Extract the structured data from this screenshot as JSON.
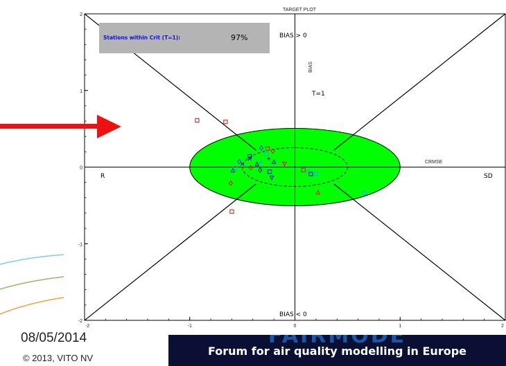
{
  "chart_data": {
    "type": "scatter",
    "title": "TARGET PLOT",
    "xlim": [
      -2,
      2
    ],
    "ylim": [
      -2,
      2
    ],
    "x_ticks": [
      "-2",
      "-1",
      "0",
      "1",
      "2"
    ],
    "y_ticks": [
      "-2",
      "-1",
      "0",
      "1",
      "2"
    ],
    "axis_labels": {
      "top": "BIAS > 0",
      "bottom": "BIAS < 0",
      "left": "R",
      "right": "SD",
      "vertical": "BIAS",
      "horizontal": "CRMSE"
    },
    "target_label": "T=1",
    "target_radius": 1,
    "inner_radius": 0.5,
    "stats_box": {
      "label": "Stations within Crit (T=1):",
      "value": "97%"
    },
    "points": [
      {
        "x": -0.93,
        "y": 0.61,
        "color": "#dd2222",
        "marker": "square"
      },
      {
        "x": -0.66,
        "y": 0.59,
        "color": "#dd2222",
        "marker": "square"
      },
      {
        "x": -0.32,
        "y": 0.25,
        "color": "#3344ff",
        "marker": "diamond"
      },
      {
        "x": -0.26,
        "y": 0.24,
        "color": "#dd2222",
        "marker": "square"
      },
      {
        "x": -0.21,
        "y": 0.21,
        "color": "#dd2222",
        "marker": "diamond"
      },
      {
        "x": -0.27,
        "y": 0.17,
        "color": "#00bbdd",
        "marker": "square"
      },
      {
        "x": -0.43,
        "y": 0.14,
        "color": "#2222cc",
        "marker": "square"
      },
      {
        "x": -0.43,
        "y": 0.11,
        "color": "#2222cc",
        "marker": "x"
      },
      {
        "x": -0.5,
        "y": 0.04,
        "color": "#2222cc",
        "marker": "x"
      },
      {
        "x": -0.53,
        "y": 0.07,
        "color": "#3344ff",
        "marker": "diamond"
      },
      {
        "x": -0.32,
        "y": 0.06,
        "color": "#00bbdd",
        "marker": "plus"
      },
      {
        "x": -0.25,
        "y": 0.11,
        "color": "#2222cc",
        "marker": "plus"
      },
      {
        "x": -0.36,
        "y": 0.04,
        "color": "#2222cc",
        "marker": "triangle"
      },
      {
        "x": -0.2,
        "y": 0.07,
        "color": "#2222cc",
        "marker": "triangle"
      },
      {
        "x": -0.1,
        "y": 0.04,
        "color": "#dd2222",
        "marker": "triangle-down"
      },
      {
        "x": -0.42,
        "y": -0.01,
        "color": "#dd2222",
        "marker": "diamond"
      },
      {
        "x": -0.57,
        "y": -0.01,
        "color": "#00bbdd",
        "marker": "square"
      },
      {
        "x": -0.59,
        "y": -0.04,
        "color": "#2222cc",
        "marker": "triangle"
      },
      {
        "x": -0.33,
        "y": -0.04,
        "color": "#2222cc",
        "marker": "diamond"
      },
      {
        "x": -0.24,
        "y": -0.06,
        "color": "#2222cc",
        "marker": "square"
      },
      {
        "x": -0.22,
        "y": -0.14,
        "color": "#2222cc",
        "marker": "triangle-down"
      },
      {
        "x": -0.61,
        "y": -0.21,
        "color": "#dd2222",
        "marker": "diamond"
      },
      {
        "x": -0.6,
        "y": -0.58,
        "color": "#dd2222",
        "marker": "square"
      },
      {
        "x": 0.08,
        "y": -0.04,
        "color": "#dd2222",
        "marker": "square"
      },
      {
        "x": 0.12,
        "y": -0.06,
        "color": "#00bbdd",
        "marker": "square"
      },
      {
        "x": 0.15,
        "y": -0.09,
        "color": "#2222cc",
        "marker": "square"
      },
      {
        "x": 0.2,
        "y": -0.09,
        "color": "#00bbdd",
        "marker": "square"
      },
      {
        "x": 0.22,
        "y": -0.33,
        "color": "#dd2222",
        "marker": "triangle"
      },
      {
        "x": 0.66,
        "y": -0.34,
        "color": "#00bbdd",
        "marker": "square"
      }
    ]
  },
  "footer": {
    "date": "08/05/2014",
    "copyright": "© 2013, VITO NV",
    "banner_title": "FAIRMODE",
    "banner_subtitle": "Forum for air quality modelling in Europe"
  }
}
